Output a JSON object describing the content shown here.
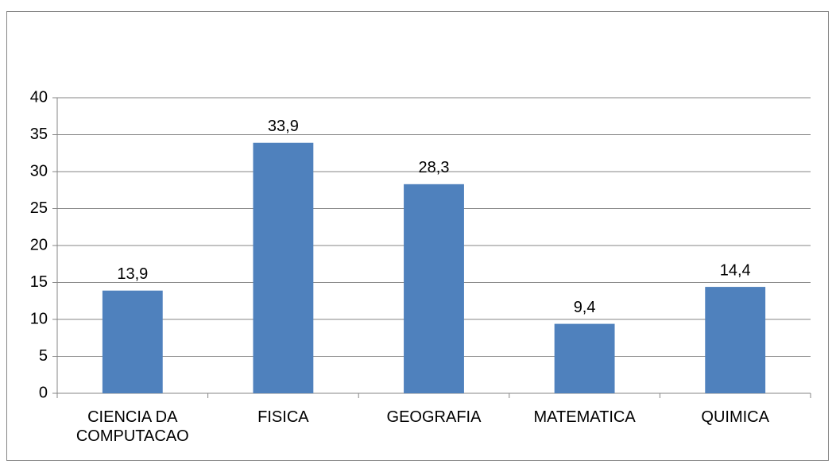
{
  "chart_data": {
    "type": "bar",
    "categories": [
      "CIENCIA DA COMPUTACAO",
      "FISICA",
      "GEOGRAFIA",
      "MATEMATICA",
      "QUIMICA"
    ],
    "values": [
      13.9,
      33.9,
      28.3,
      9.4,
      14.4
    ],
    "value_labels": [
      "13,9",
      "33,9",
      "28,3",
      "9,4",
      "14,4"
    ],
    "color": "#4f81bd",
    "ylim": [
      0,
      40
    ],
    "yticks": [
      0,
      5,
      10,
      15,
      20,
      25,
      30,
      35,
      40
    ],
    "grid": true
  }
}
